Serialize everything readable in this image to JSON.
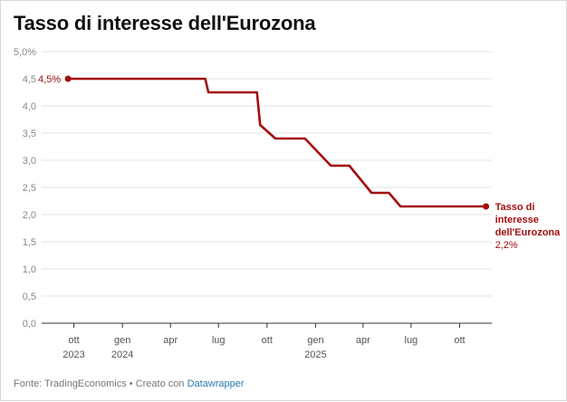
{
  "title": "Tasso di interesse dell'Eurozona",
  "footer": {
    "source": "Fonte: TradingEconomics • Creato con ",
    "tool": "Datawrapper"
  },
  "colors": {
    "line": "#a30f0f",
    "grid": "#e3e3e3",
    "axis": "#333333",
    "tick_text": "#888888",
    "xtick_text": "#555555"
  },
  "chart_data": {
    "type": "line",
    "title": "Tasso di interesse dell'Eurozona",
    "xlabel": "",
    "ylabel": "",
    "ylim": [
      0,
      5
    ],
    "yticks": [
      "0,0",
      "0,5",
      "1,0",
      "1,5",
      "2,0",
      "2,5",
      "3,0",
      "3,5",
      "4,0",
      "4,5",
      "5,0%"
    ],
    "xlim": [
      "2023-08-01",
      "2025-12-01"
    ],
    "xticks": [
      {
        "date": "2023-10-01",
        "label": "ott",
        "year": "2023"
      },
      {
        "date": "2024-01-01",
        "label": "gen",
        "year": "2024"
      },
      {
        "date": "2024-04-01",
        "label": "apr",
        "year": ""
      },
      {
        "date": "2024-07-01",
        "label": "lug",
        "year": ""
      },
      {
        "date": "2024-10-01",
        "label": "ott",
        "year": ""
      },
      {
        "date": "2025-01-01",
        "label": "gen",
        "year": "2025"
      },
      {
        "date": "2025-04-01",
        "label": "apr",
        "year": ""
      },
      {
        "date": "2025-07-01",
        "label": "lug",
        "year": ""
      },
      {
        "date": "2025-10-01",
        "label": "ott",
        "year": ""
      }
    ],
    "grid": true,
    "series": [
      {
        "name": "Tasso di interesse dell'Eurozona",
        "points": [
          {
            "x": "2023-09-20",
            "y": 4.5
          },
          {
            "x": "2024-06-06",
            "y": 4.5
          },
          {
            "x": "2024-06-12",
            "y": 4.25
          },
          {
            "x": "2024-09-12",
            "y": 4.25
          },
          {
            "x": "2024-09-18",
            "y": 3.65
          },
          {
            "x": "2024-10-17",
            "y": 3.4
          },
          {
            "x": "2024-12-12",
            "y": 3.4
          },
          {
            "x": "2025-01-30",
            "y": 2.9
          },
          {
            "x": "2025-03-06",
            "y": 2.9
          },
          {
            "x": "2025-04-17",
            "y": 2.4
          },
          {
            "x": "2025-05-20",
            "y": 2.4
          },
          {
            "x": "2025-06-11",
            "y": 2.15
          },
          {
            "x": "2025-11-20",
            "y": 2.15
          }
        ]
      }
    ],
    "annotations": {
      "start_label": "4,5%",
      "end_label_lines": [
        "Tasso di",
        "interesse",
        "dell'Eurozona"
      ],
      "end_value": "2,2%"
    }
  }
}
